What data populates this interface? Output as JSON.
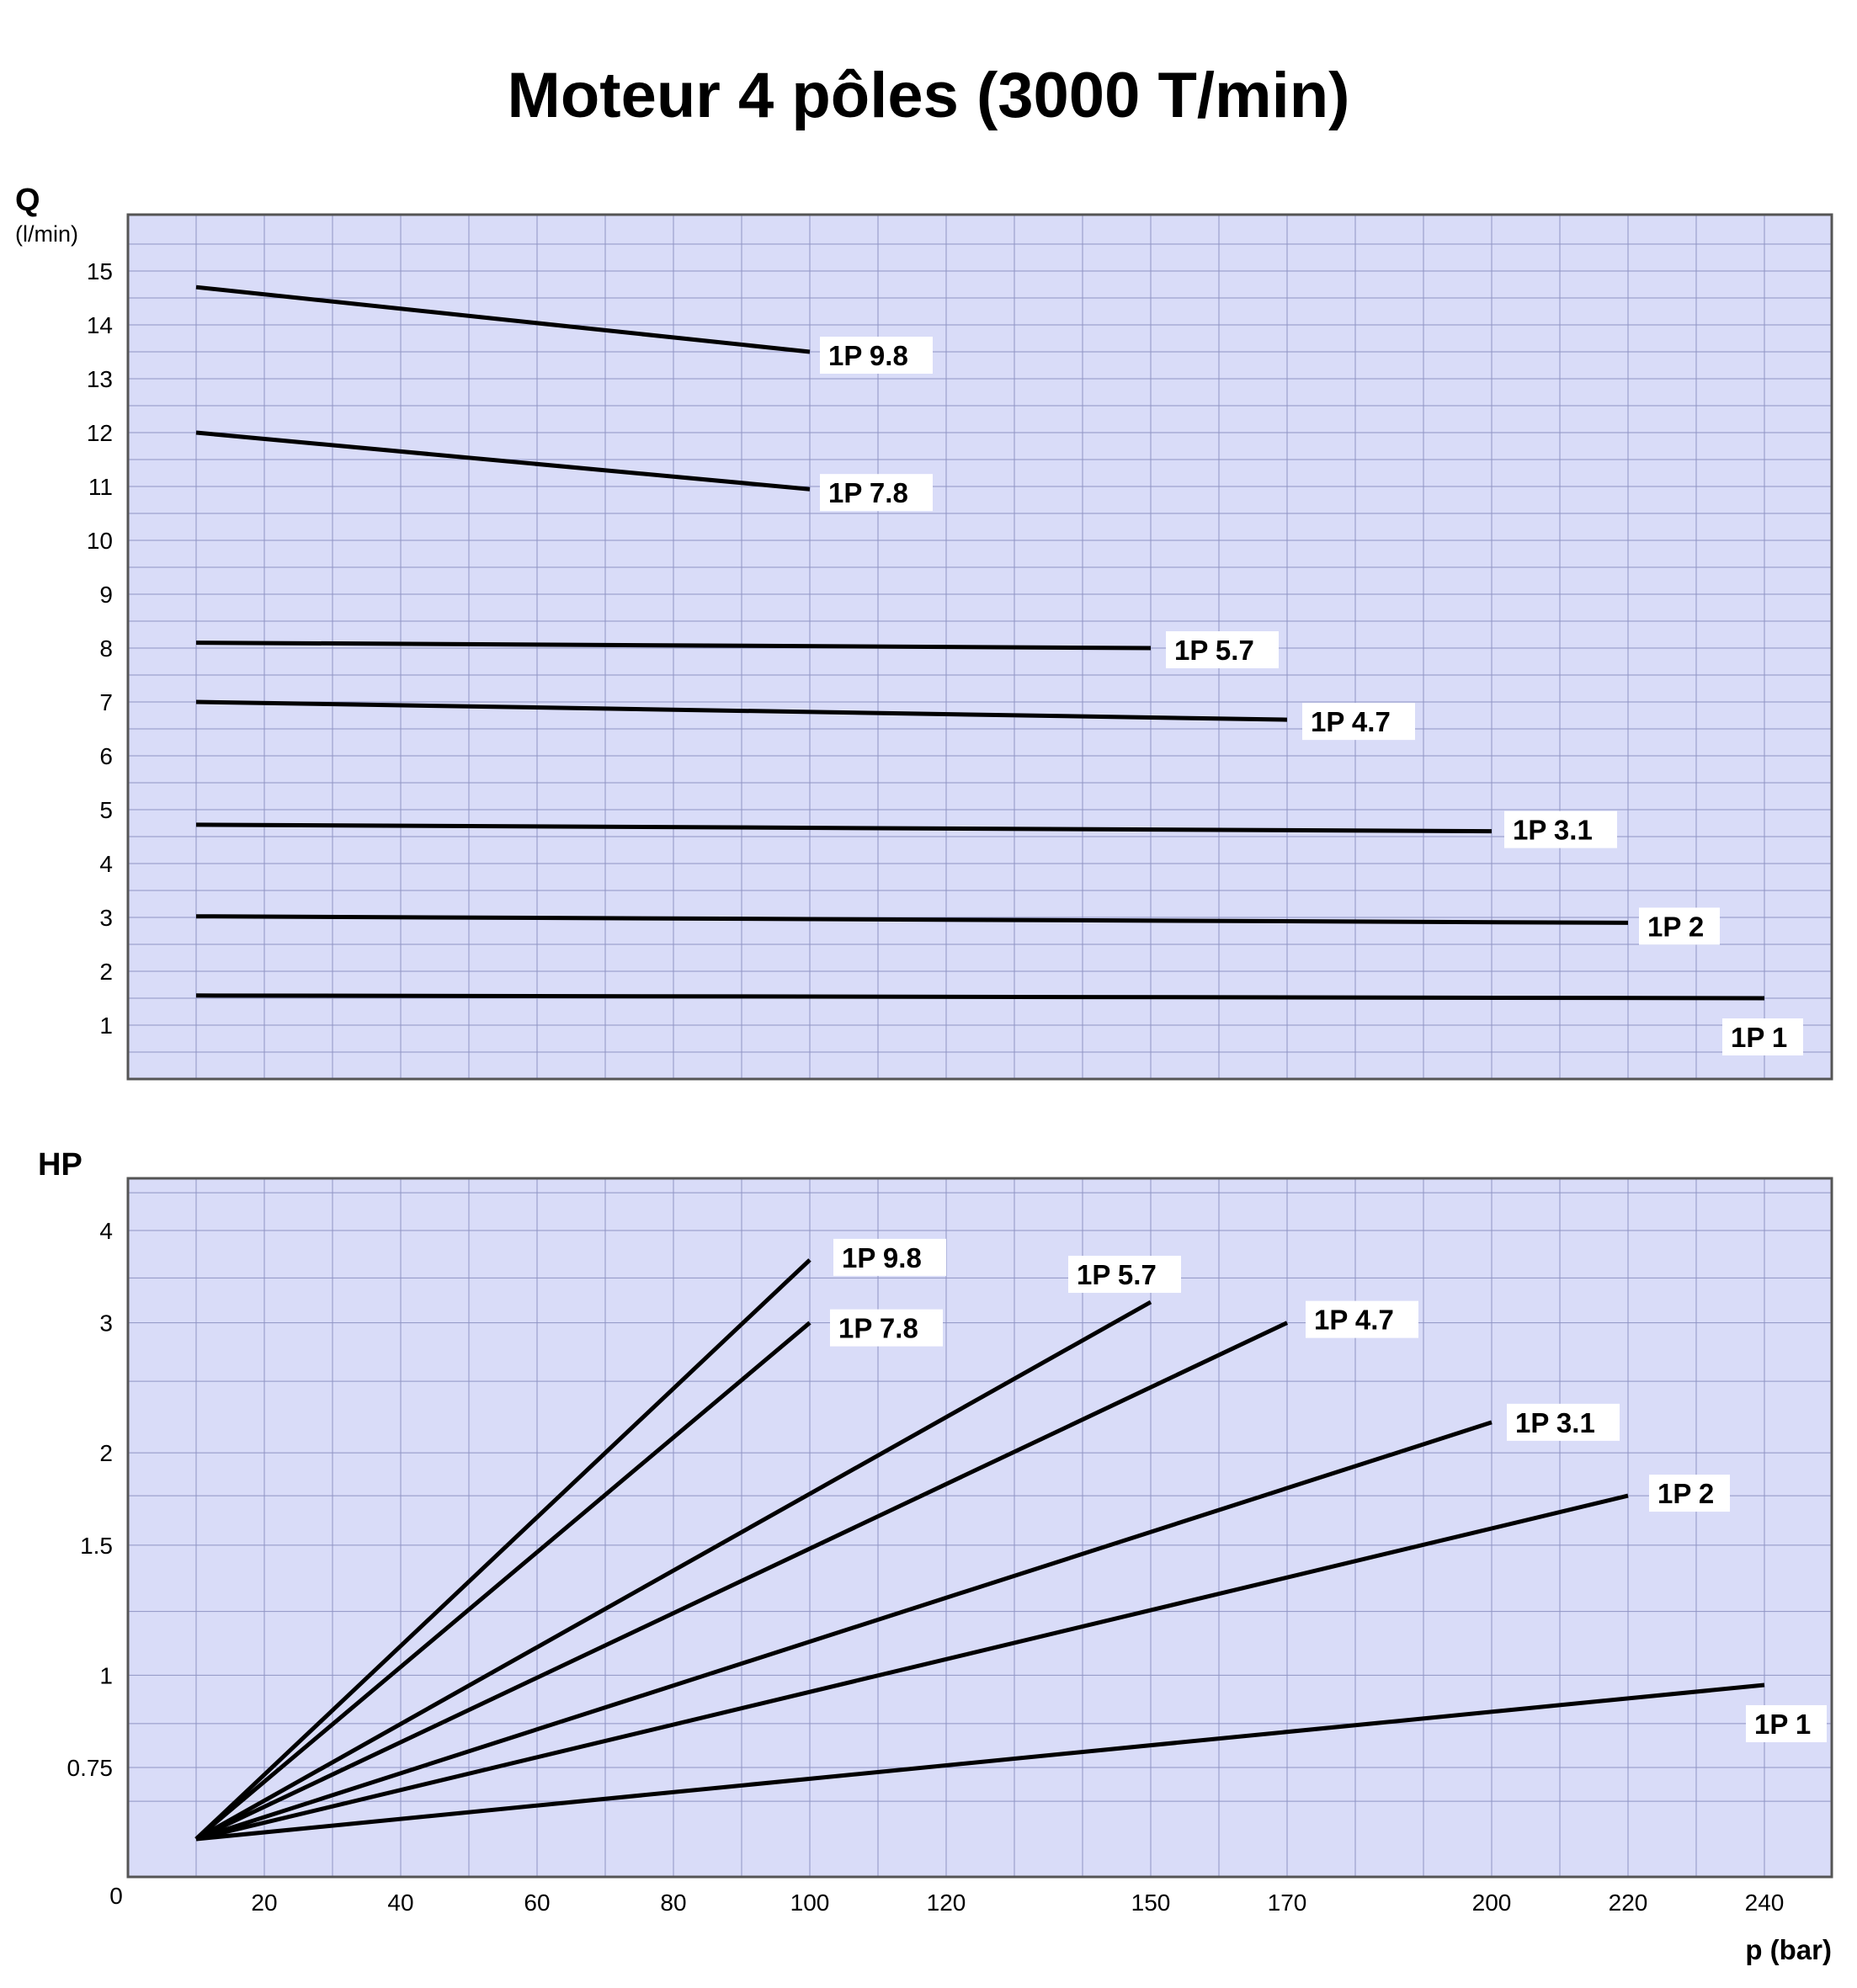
{
  "title": "Moteur 4 pôles (3000 T/min)",
  "colors": {
    "plot_background": "#d9dcf8",
    "grid": "#8f94c4",
    "frame": "#555555",
    "line": "#000000",
    "label_background": "#ffffff"
  },
  "chart_data": [
    {
      "type": "line",
      "name": "flow",
      "ylabel": "Q",
      "yunit": "(l/min)",
      "ylim": [
        0,
        15.5
      ],
      "yticks": [
        "1",
        "2",
        "3",
        "4",
        "5",
        "6",
        "7",
        "8",
        "9",
        "10",
        "11",
        "12",
        "13",
        "14",
        "15"
      ],
      "grid": true,
      "series": [
        {
          "name": "1P 9.8",
          "x": [
            10,
            100
          ],
          "y": [
            14.7,
            13.5
          ]
        },
        {
          "name": "1P 7.8",
          "x": [
            10,
            100
          ],
          "y": [
            12.0,
            10.95
          ]
        },
        {
          "name": "1P 5.7",
          "x": [
            10,
            150
          ],
          "y": [
            8.1,
            8.0
          ]
        },
        {
          "name": "1P 4.7",
          "x": [
            10,
            170
          ],
          "y": [
            7.0,
            6.67
          ]
        },
        {
          "name": "1P 3.1",
          "x": [
            10,
            200
          ],
          "y": [
            4.72,
            4.6
          ]
        },
        {
          "name": "1P 2",
          "x": [
            10,
            220
          ],
          "y": [
            3.02,
            2.9
          ]
        },
        {
          "name": "1P 1",
          "x": [
            10,
            240
          ],
          "y": [
            1.55,
            1.5
          ]
        }
      ]
    },
    {
      "type": "line",
      "name": "power",
      "ylabel": "HP",
      "xlabel": "p (bar)",
      "origin_label": "0",
      "xticks": [
        "20",
        "40",
        "60",
        "80",
        "100",
        "120",
        "150",
        "170",
        "200",
        "220",
        "240"
      ],
      "yticks": [
        "0.75",
        "1",
        "1.5",
        "2",
        "3",
        "4"
      ],
      "grid": true,
      "series": [
        {
          "name": "1P 9.8",
          "x": [
            10,
            100
          ],
          "y": [
            0.6,
            3.65
          ]
        },
        {
          "name": "1P 7.8",
          "x": [
            10,
            100
          ],
          "y": [
            0.6,
            3.0
          ]
        },
        {
          "name": "1P 5.7",
          "x": [
            10,
            150
          ],
          "y": [
            0.6,
            3.2
          ]
        },
        {
          "name": "1P 4.7",
          "x": [
            10,
            170
          ],
          "y": [
            0.6,
            3.0
          ]
        },
        {
          "name": "1P 3.1",
          "x": [
            10,
            200
          ],
          "y": [
            0.6,
            2.2
          ]
        },
        {
          "name": "1P 2",
          "x": [
            10,
            220
          ],
          "y": [
            0.6,
            1.75
          ]
        },
        {
          "name": "1P 1",
          "x": [
            10,
            240
          ],
          "y": [
            0.6,
            0.97
          ]
        }
      ]
    }
  ]
}
